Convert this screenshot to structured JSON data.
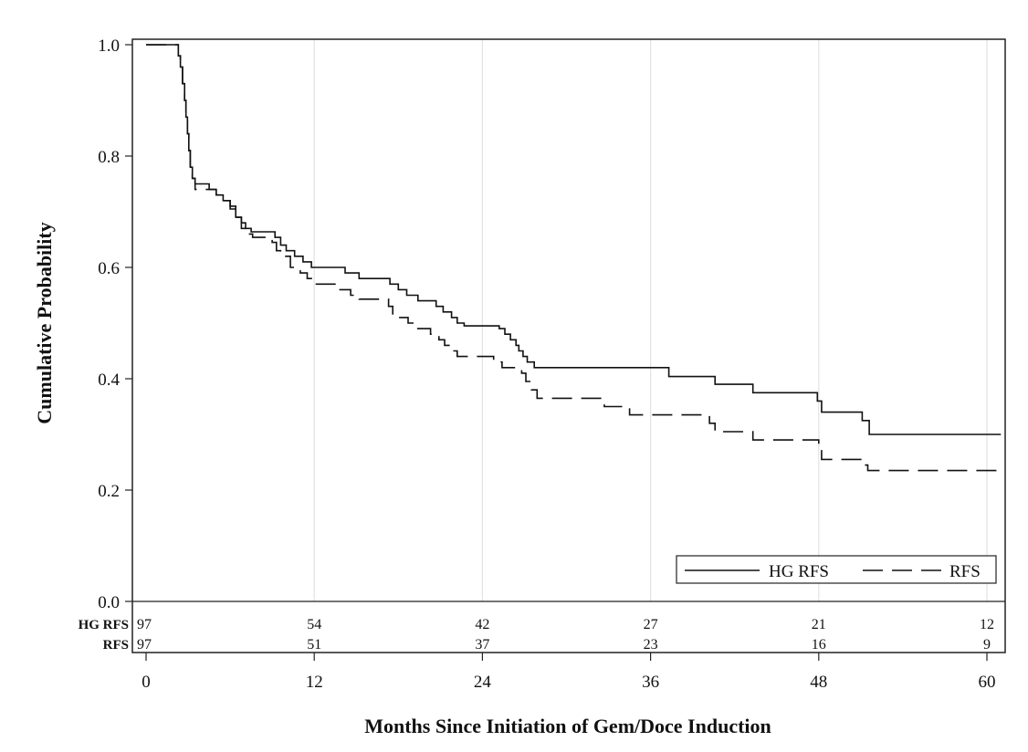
{
  "chart_data": {
    "type": "line",
    "xlabel": "Months Since Initiation of Gem/Doce Induction",
    "ylabel": "Cumulative Probability",
    "xlim": [
      0,
      61
    ],
    "ylim": [
      0,
      1.0
    ],
    "x_ticks": [
      0,
      12,
      24,
      36,
      48,
      60
    ],
    "y_ticks": [
      0.0,
      0.2,
      0.4,
      0.6,
      0.8,
      1.0
    ],
    "x_tick_labels": [
      "0",
      "12",
      "24",
      "36",
      "48",
      "60"
    ],
    "y_tick_labels": [
      "0.0",
      "0.2",
      "0.4",
      "0.6",
      "0.8",
      "1.0"
    ],
    "grid": "vertical",
    "legend_position": "bottom-right",
    "series": [
      {
        "name": "HG RFS",
        "style": "solid",
        "color": "#111111",
        "points": [
          [
            0,
            1.0
          ],
          [
            2.2,
            1.0
          ],
          [
            2.3,
            0.98
          ],
          [
            2.45,
            0.96
          ],
          [
            2.6,
            0.93
          ],
          [
            2.75,
            0.9
          ],
          [
            2.85,
            0.87
          ],
          [
            2.95,
            0.84
          ],
          [
            3.05,
            0.81
          ],
          [
            3.15,
            0.78
          ],
          [
            3.3,
            0.76
          ],
          [
            3.5,
            0.75
          ],
          [
            4.5,
            0.74
          ],
          [
            5.0,
            0.73
          ],
          [
            5.5,
            0.72
          ],
          [
            6.0,
            0.71
          ],
          [
            6.4,
            0.69
          ],
          [
            6.8,
            0.68
          ],
          [
            7.1,
            0.67
          ],
          [
            7.5,
            0.664
          ],
          [
            9.2,
            0.654
          ],
          [
            9.6,
            0.64
          ],
          [
            10.0,
            0.63
          ],
          [
            10.6,
            0.62
          ],
          [
            11.2,
            0.61
          ],
          [
            11.8,
            0.6
          ],
          [
            14.2,
            0.59
          ],
          [
            15.2,
            0.58
          ],
          [
            17.4,
            0.57
          ],
          [
            18.0,
            0.56
          ],
          [
            18.6,
            0.55
          ],
          [
            19.4,
            0.54
          ],
          [
            20.7,
            0.53
          ],
          [
            21.2,
            0.52
          ],
          [
            21.8,
            0.51
          ],
          [
            22.2,
            0.5
          ],
          [
            22.7,
            0.495
          ],
          [
            25.2,
            0.49
          ],
          [
            25.6,
            0.48
          ],
          [
            26.0,
            0.47
          ],
          [
            26.4,
            0.46
          ],
          [
            26.6,
            0.45
          ],
          [
            26.9,
            0.44
          ],
          [
            27.2,
            0.43
          ],
          [
            27.7,
            0.42
          ],
          [
            37.3,
            0.404
          ],
          [
            40.6,
            0.39
          ],
          [
            43.3,
            0.375
          ],
          [
            47.9,
            0.36
          ],
          [
            48.2,
            0.34
          ],
          [
            51.1,
            0.325
          ],
          [
            51.6,
            0.3
          ],
          [
            61,
            0.3
          ]
        ]
      },
      {
        "name": "RFS",
        "style": "dashed",
        "color": "#111111",
        "points": [
          [
            0,
            1.0
          ],
          [
            2.2,
            1.0
          ],
          [
            2.3,
            0.98
          ],
          [
            2.45,
            0.96
          ],
          [
            2.6,
            0.93
          ],
          [
            2.75,
            0.9
          ],
          [
            2.85,
            0.87
          ],
          [
            2.95,
            0.84
          ],
          [
            3.05,
            0.81
          ],
          [
            3.15,
            0.78
          ],
          [
            3.3,
            0.76
          ],
          [
            3.5,
            0.74
          ],
          [
            5.0,
            0.73
          ],
          [
            5.5,
            0.72
          ],
          [
            6.0,
            0.705
          ],
          [
            6.4,
            0.69
          ],
          [
            6.8,
            0.67
          ],
          [
            7.2,
            0.66
          ],
          [
            7.6,
            0.654
          ],
          [
            9.0,
            0.645
          ],
          [
            9.3,
            0.63
          ],
          [
            9.6,
            0.62
          ],
          [
            10.3,
            0.6
          ],
          [
            11.0,
            0.59
          ],
          [
            11.5,
            0.58
          ],
          [
            12.0,
            0.57
          ],
          [
            13.6,
            0.56
          ],
          [
            14.6,
            0.55
          ],
          [
            15.2,
            0.543
          ],
          [
            17.3,
            0.53
          ],
          [
            17.6,
            0.51
          ],
          [
            18.7,
            0.5
          ],
          [
            19.2,
            0.49
          ],
          [
            20.3,
            0.48
          ],
          [
            20.9,
            0.47
          ],
          [
            21.3,
            0.46
          ],
          [
            21.7,
            0.45
          ],
          [
            22.2,
            0.44
          ],
          [
            24.8,
            0.43
          ],
          [
            25.4,
            0.42
          ],
          [
            26.8,
            0.41
          ],
          [
            27.1,
            0.395
          ],
          [
            27.5,
            0.38
          ],
          [
            27.9,
            0.365
          ],
          [
            32.7,
            0.35
          ],
          [
            34.5,
            0.335
          ],
          [
            40.2,
            0.32
          ],
          [
            40.6,
            0.305
          ],
          [
            43.3,
            0.29
          ],
          [
            48.0,
            0.275
          ],
          [
            48.2,
            0.255
          ],
          [
            51.1,
            0.245
          ],
          [
            51.5,
            0.235
          ],
          [
            61,
            0.235
          ]
        ]
      }
    ],
    "risk_table": {
      "rows": [
        {
          "label": "HG RFS",
          "values": [
            "97",
            "54",
            "42",
            "27",
            "21",
            "12"
          ]
        },
        {
          "label": "RFS",
          "values": [
            "97",
            "51",
            "37",
            "23",
            "16",
            "9"
          ]
        }
      ],
      "times": [
        0,
        12,
        24,
        36,
        48,
        60
      ]
    }
  }
}
